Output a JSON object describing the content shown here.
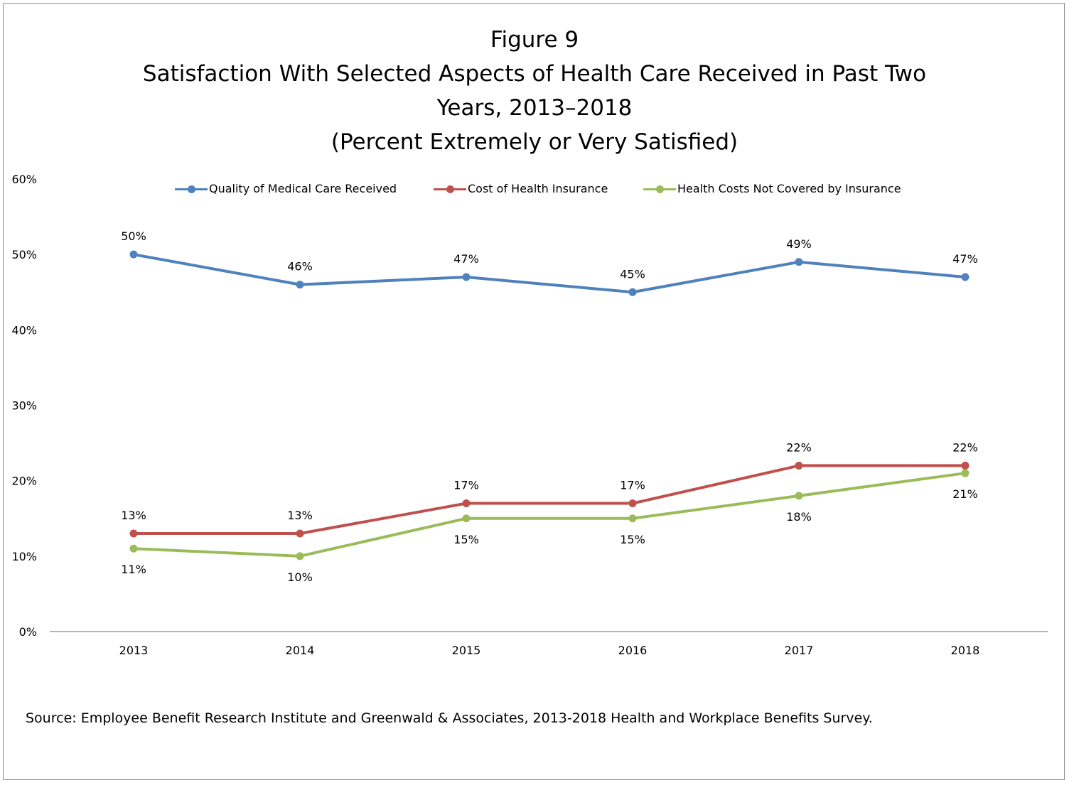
{
  "chart_data": {
    "type": "line",
    "title": "Figure 9",
    "subtitle_lines": [
      "Satisfaction With Selected Aspects of Health Care Received in Past Two",
      "Years, 2013–2018",
      "(Percent Extremely or Very Satisfied)"
    ],
    "categories": [
      "2013",
      "2014",
      "2015",
      "2016",
      "2017",
      "2018"
    ],
    "y_ticks": [
      "0%",
      "10%",
      "20%",
      "30%",
      "40%",
      "50%",
      "60%"
    ],
    "ylim": [
      0,
      60
    ],
    "grid": false,
    "legend_position": "top",
    "series": [
      {
        "name": "Quality of Medical Care Received",
        "color": "#4f81bd",
        "values": [
          50,
          46,
          47,
          45,
          49,
          47
        ],
        "labels": [
          "50%",
          "46%",
          "47%",
          "45%",
          "49%",
          "47%"
        ],
        "label_position": "above"
      },
      {
        "name": "Cost of Health Insurance",
        "color": "#c0504d",
        "values": [
          13,
          13,
          17,
          17,
          22,
          22
        ],
        "labels": [
          "13%",
          "13%",
          "17%",
          "17%",
          "22%",
          "22%"
        ],
        "label_position": "above"
      },
      {
        "name": "Health Costs Not Covered by Insurance",
        "color": "#9bbb59",
        "values": [
          11,
          10,
          15,
          15,
          18,
          21
        ],
        "labels": [
          "11%",
          "10%",
          "15%",
          "15%",
          "18%",
          "21%"
        ],
        "label_position": "below"
      }
    ]
  },
  "source": "Source: Employee Benefit Research Institute and Greenwald & Associates, 2013-2018 Health and Workplace Benefits Survey."
}
